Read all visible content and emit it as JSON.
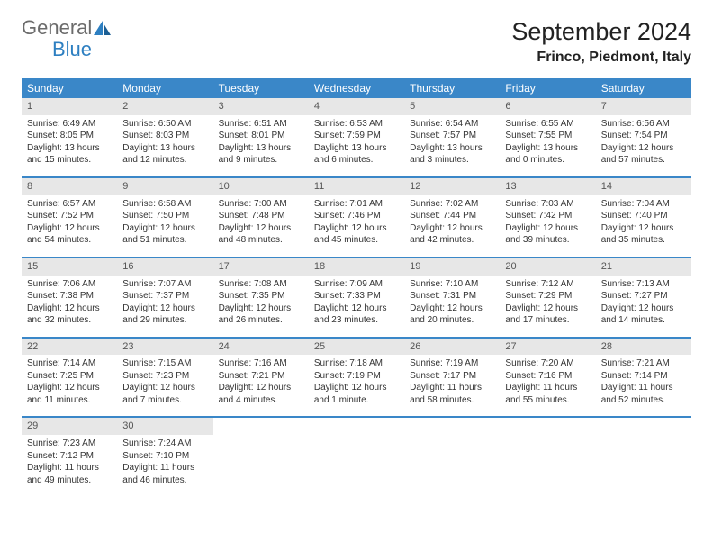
{
  "brand": {
    "word1": "General",
    "word2": "Blue",
    "color1": "#6b6b6b",
    "color2": "#2d7fc1"
  },
  "header": {
    "title": "September 2024",
    "location": "Frinco, Piedmont, Italy"
  },
  "calendar": {
    "header_bg": "#3a87c8",
    "header_text_color": "#ffffff",
    "divider_color": "#3a87c8",
    "daynum_bg": "#e7e7e7",
    "weekdays": [
      "Sunday",
      "Monday",
      "Tuesday",
      "Wednesday",
      "Thursday",
      "Friday",
      "Saturday"
    ],
    "weeks": [
      [
        {
          "n": "1",
          "sunrise": "Sunrise: 6:49 AM",
          "sunset": "Sunset: 8:05 PM",
          "daylight": "Daylight: 13 hours and 15 minutes."
        },
        {
          "n": "2",
          "sunrise": "Sunrise: 6:50 AM",
          "sunset": "Sunset: 8:03 PM",
          "daylight": "Daylight: 13 hours and 12 minutes."
        },
        {
          "n": "3",
          "sunrise": "Sunrise: 6:51 AM",
          "sunset": "Sunset: 8:01 PM",
          "daylight": "Daylight: 13 hours and 9 minutes."
        },
        {
          "n": "4",
          "sunrise": "Sunrise: 6:53 AM",
          "sunset": "Sunset: 7:59 PM",
          "daylight": "Daylight: 13 hours and 6 minutes."
        },
        {
          "n": "5",
          "sunrise": "Sunrise: 6:54 AM",
          "sunset": "Sunset: 7:57 PM",
          "daylight": "Daylight: 13 hours and 3 minutes."
        },
        {
          "n": "6",
          "sunrise": "Sunrise: 6:55 AM",
          "sunset": "Sunset: 7:55 PM",
          "daylight": "Daylight: 13 hours and 0 minutes."
        },
        {
          "n": "7",
          "sunrise": "Sunrise: 6:56 AM",
          "sunset": "Sunset: 7:54 PM",
          "daylight": "Daylight: 12 hours and 57 minutes."
        }
      ],
      [
        {
          "n": "8",
          "sunrise": "Sunrise: 6:57 AM",
          "sunset": "Sunset: 7:52 PM",
          "daylight": "Daylight: 12 hours and 54 minutes."
        },
        {
          "n": "9",
          "sunrise": "Sunrise: 6:58 AM",
          "sunset": "Sunset: 7:50 PM",
          "daylight": "Daylight: 12 hours and 51 minutes."
        },
        {
          "n": "10",
          "sunrise": "Sunrise: 7:00 AM",
          "sunset": "Sunset: 7:48 PM",
          "daylight": "Daylight: 12 hours and 48 minutes."
        },
        {
          "n": "11",
          "sunrise": "Sunrise: 7:01 AM",
          "sunset": "Sunset: 7:46 PM",
          "daylight": "Daylight: 12 hours and 45 minutes."
        },
        {
          "n": "12",
          "sunrise": "Sunrise: 7:02 AM",
          "sunset": "Sunset: 7:44 PM",
          "daylight": "Daylight: 12 hours and 42 minutes."
        },
        {
          "n": "13",
          "sunrise": "Sunrise: 7:03 AM",
          "sunset": "Sunset: 7:42 PM",
          "daylight": "Daylight: 12 hours and 39 minutes."
        },
        {
          "n": "14",
          "sunrise": "Sunrise: 7:04 AM",
          "sunset": "Sunset: 7:40 PM",
          "daylight": "Daylight: 12 hours and 35 minutes."
        }
      ],
      [
        {
          "n": "15",
          "sunrise": "Sunrise: 7:06 AM",
          "sunset": "Sunset: 7:38 PM",
          "daylight": "Daylight: 12 hours and 32 minutes."
        },
        {
          "n": "16",
          "sunrise": "Sunrise: 7:07 AM",
          "sunset": "Sunset: 7:37 PM",
          "daylight": "Daylight: 12 hours and 29 minutes."
        },
        {
          "n": "17",
          "sunrise": "Sunrise: 7:08 AM",
          "sunset": "Sunset: 7:35 PM",
          "daylight": "Daylight: 12 hours and 26 minutes."
        },
        {
          "n": "18",
          "sunrise": "Sunrise: 7:09 AM",
          "sunset": "Sunset: 7:33 PM",
          "daylight": "Daylight: 12 hours and 23 minutes."
        },
        {
          "n": "19",
          "sunrise": "Sunrise: 7:10 AM",
          "sunset": "Sunset: 7:31 PM",
          "daylight": "Daylight: 12 hours and 20 minutes."
        },
        {
          "n": "20",
          "sunrise": "Sunrise: 7:12 AM",
          "sunset": "Sunset: 7:29 PM",
          "daylight": "Daylight: 12 hours and 17 minutes."
        },
        {
          "n": "21",
          "sunrise": "Sunrise: 7:13 AM",
          "sunset": "Sunset: 7:27 PM",
          "daylight": "Daylight: 12 hours and 14 minutes."
        }
      ],
      [
        {
          "n": "22",
          "sunrise": "Sunrise: 7:14 AM",
          "sunset": "Sunset: 7:25 PM",
          "daylight": "Daylight: 12 hours and 11 minutes."
        },
        {
          "n": "23",
          "sunrise": "Sunrise: 7:15 AM",
          "sunset": "Sunset: 7:23 PM",
          "daylight": "Daylight: 12 hours and 7 minutes."
        },
        {
          "n": "24",
          "sunrise": "Sunrise: 7:16 AM",
          "sunset": "Sunset: 7:21 PM",
          "daylight": "Daylight: 12 hours and 4 minutes."
        },
        {
          "n": "25",
          "sunrise": "Sunrise: 7:18 AM",
          "sunset": "Sunset: 7:19 PM",
          "daylight": "Daylight: 12 hours and 1 minute."
        },
        {
          "n": "26",
          "sunrise": "Sunrise: 7:19 AM",
          "sunset": "Sunset: 7:17 PM",
          "daylight": "Daylight: 11 hours and 58 minutes."
        },
        {
          "n": "27",
          "sunrise": "Sunrise: 7:20 AM",
          "sunset": "Sunset: 7:16 PM",
          "daylight": "Daylight: 11 hours and 55 minutes."
        },
        {
          "n": "28",
          "sunrise": "Sunrise: 7:21 AM",
          "sunset": "Sunset: 7:14 PM",
          "daylight": "Daylight: 11 hours and 52 minutes."
        }
      ],
      [
        {
          "n": "29",
          "sunrise": "Sunrise: 7:23 AM",
          "sunset": "Sunset: 7:12 PM",
          "daylight": "Daylight: 11 hours and 49 minutes."
        },
        {
          "n": "30",
          "sunrise": "Sunrise: 7:24 AM",
          "sunset": "Sunset: 7:10 PM",
          "daylight": "Daylight: 11 hours and 46 minutes."
        },
        null,
        null,
        null,
        null,
        null
      ]
    ]
  }
}
